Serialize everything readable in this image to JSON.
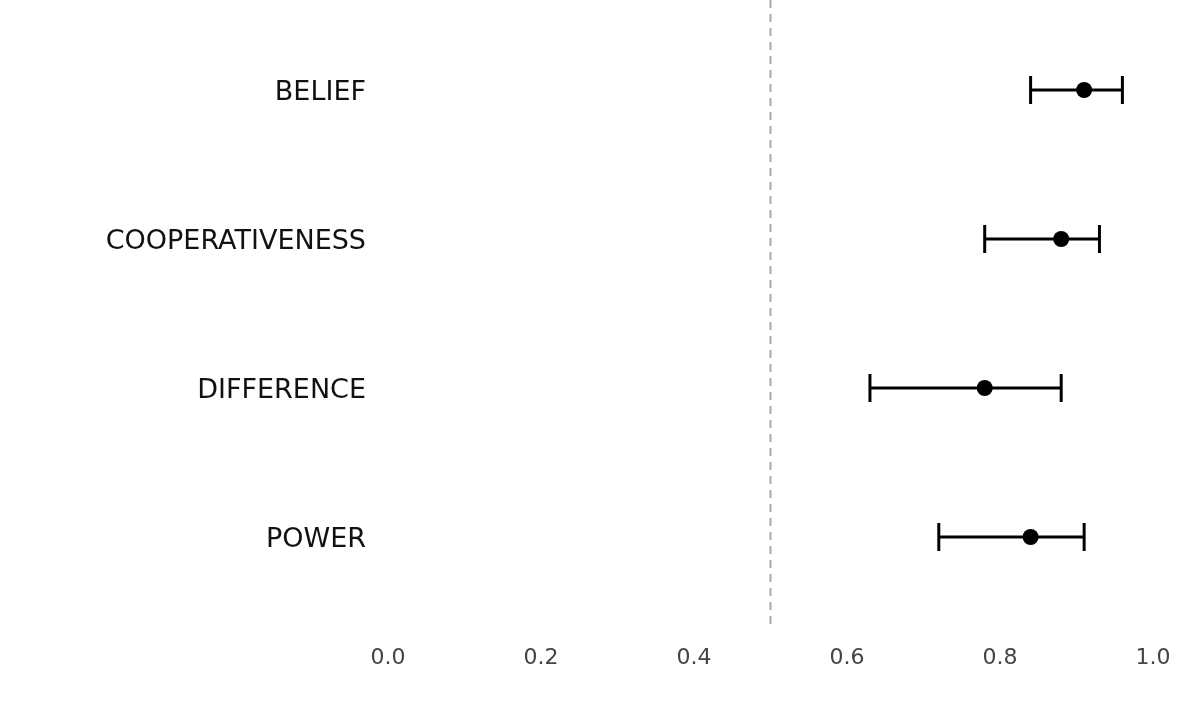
{
  "chart_data": {
    "type": "scatter",
    "orientation": "horizontal",
    "categories": [
      "BELIEF",
      "COOPERATIVENESS",
      "DIFFERENCE",
      "POWER"
    ],
    "values": [
      0.91,
      0.88,
      0.78,
      0.84
    ],
    "errors": [
      [
        0.84,
        0.96
      ],
      [
        0.78,
        0.93
      ],
      [
        0.63,
        0.88
      ],
      [
        0.72,
        0.91
      ]
    ],
    "color": "#000000",
    "marker": "circle",
    "xlim": [
      0,
      1
    ],
    "xticks": [
      {
        "value": 0,
        "label": "0.0"
      },
      0.2,
      0.4,
      0.6,
      0.8,
      {
        "value": 1,
        "label": "1.0"
      }
    ],
    "ref_lines": [
      {
        "axis": "x",
        "value": 0.5,
        "color": "#aaaaaa",
        "line_style": "dashed"
      }
    ]
  }
}
